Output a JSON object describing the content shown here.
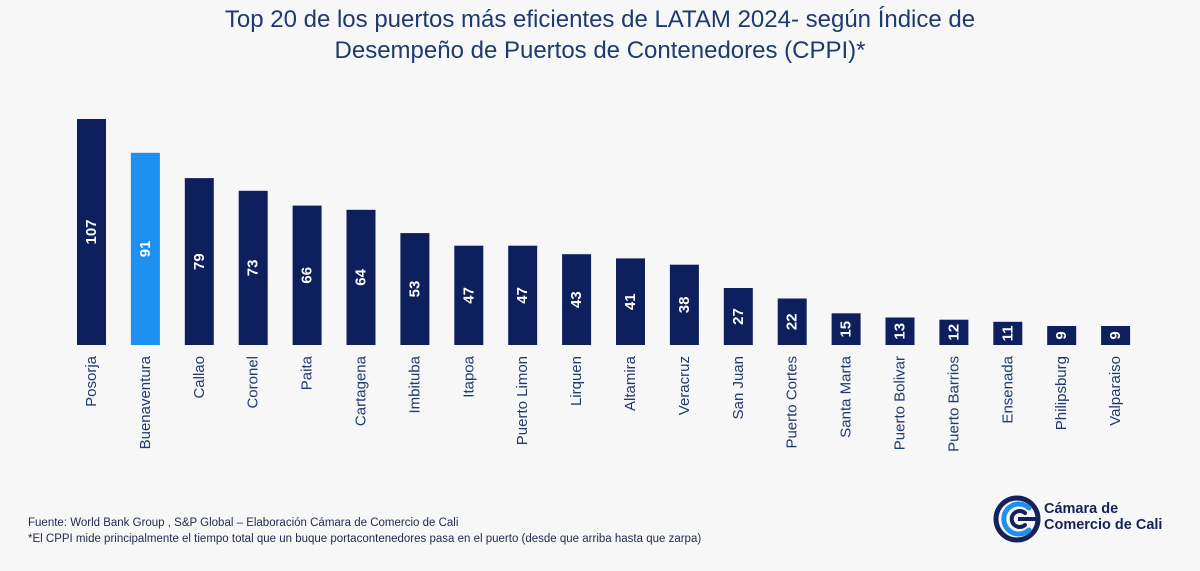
{
  "title": {
    "line1": "Top 20 de los puertos más eficientes de LATAM 2024- según Índice de",
    "line2": "Desempeño de Puertos de Contenedores (CPPI)*"
  },
  "chart_data": {
    "type": "bar",
    "title": "Top 20 de los puertos más eficientes de LATAM 2024- según Índice de Desempeño de Puertos de Contenedores (CPPI)*",
    "categories": [
      "Posorja",
      "Buenaventura",
      "Callao",
      "Coronel",
      "Paita",
      "Cartagena",
      "Imbituba",
      "Itapoa",
      "Puerto Limon",
      "Lirquen",
      "Altamira",
      "Veracruz",
      "San Juan",
      "Puerto Cortes",
      "Santa Marta",
      "Puerto Bolivar",
      "Puerto Barrios",
      "Ensenada",
      "Philipsburg",
      "Valparaiso"
    ],
    "values": [
      107,
      91,
      79,
      73,
      66,
      64,
      53,
      47,
      47,
      43,
      41,
      38,
      27,
      22,
      15,
      13,
      12,
      11,
      9,
      9
    ],
    "highlight_index": 1,
    "colors": {
      "default": "#0d1f5c",
      "highlight": "#1e90f0",
      "label": "#ffffff"
    },
    "xlabel": "",
    "ylabel": "",
    "ylim": [
      0,
      107
    ],
    "grid": false,
    "data_labels": true
  },
  "footer": {
    "source": "Fuente: World Bank Group , S&P Global – Elaboración Cámara de Comercio de Cali",
    "note": "*El CPPI mide principalmente el tiempo total que un buque portacontenedores pasa en el puerto (desde que arriba hasta que zarpa)"
  },
  "logo": {
    "line1": "Cámara de",
    "line2": "Comercio de Cali",
    "color": "#13235a"
  }
}
